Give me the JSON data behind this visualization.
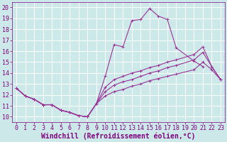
{
  "xlabel": "Windchill (Refroidissement éolien,°C)",
  "background_color": "#cce8e8",
  "grid_color": "#ffffff",
  "line_color": "#993399",
  "xlim": [
    -0.5,
    23.5
  ],
  "ylim": [
    9.5,
    20.5
  ],
  "xticks": [
    0,
    1,
    2,
    3,
    4,
    5,
    6,
    7,
    8,
    9,
    10,
    11,
    12,
    13,
    14,
    15,
    16,
    17,
    18,
    19,
    20,
    21,
    22,
    23
  ],
  "yticks": [
    10,
    11,
    12,
    13,
    14,
    15,
    16,
    17,
    18,
    19,
    20
  ],
  "common_x": [
    0,
    1,
    2,
    3,
    4,
    5,
    6,
    7,
    8,
    9
  ],
  "common_y": [
    12.6,
    11.9,
    11.6,
    11.1,
    11.1,
    10.6,
    10.4,
    10.1,
    10.0,
    11.2
  ],
  "line1_x": [
    9,
    10,
    11,
    12,
    13,
    14,
    15,
    16,
    17,
    18,
    20,
    21
  ],
  "line1_y": [
    11.2,
    13.7,
    16.6,
    16.4,
    18.8,
    18.9,
    19.9,
    19.2,
    18.9,
    16.3,
    15.1,
    14.6
  ],
  "line2_x": [
    9,
    10,
    11,
    12,
    13,
    14,
    15,
    16,
    17,
    18,
    20,
    21,
    22,
    23
  ],
  "line2_y": [
    11.2,
    12.7,
    13.4,
    13.7,
    14.0,
    14.2,
    14.5,
    14.7,
    15.0,
    15.2,
    15.7,
    16.4,
    14.6,
    13.4
  ],
  "line3_x": [
    9,
    10,
    11,
    12,
    13,
    14,
    15,
    16,
    17,
    18,
    20,
    21,
    22,
    23
  ],
  "line3_y": [
    11.2,
    12.3,
    12.9,
    13.2,
    13.4,
    13.7,
    14.0,
    14.2,
    14.5,
    14.7,
    15.2,
    15.9,
    14.6,
    13.4
  ],
  "line4_x": [
    9,
    10,
    11,
    12,
    13,
    14,
    15,
    16,
    17,
    18,
    20,
    21,
    22,
    23
  ],
  "line4_y": [
    11.2,
    11.9,
    12.3,
    12.5,
    12.8,
    13.0,
    13.3,
    13.5,
    13.7,
    13.9,
    14.3,
    15.0,
    14.3,
    13.4
  ],
  "font_color": "#800080",
  "tick_font_size": 6,
  "label_font_size": 7
}
